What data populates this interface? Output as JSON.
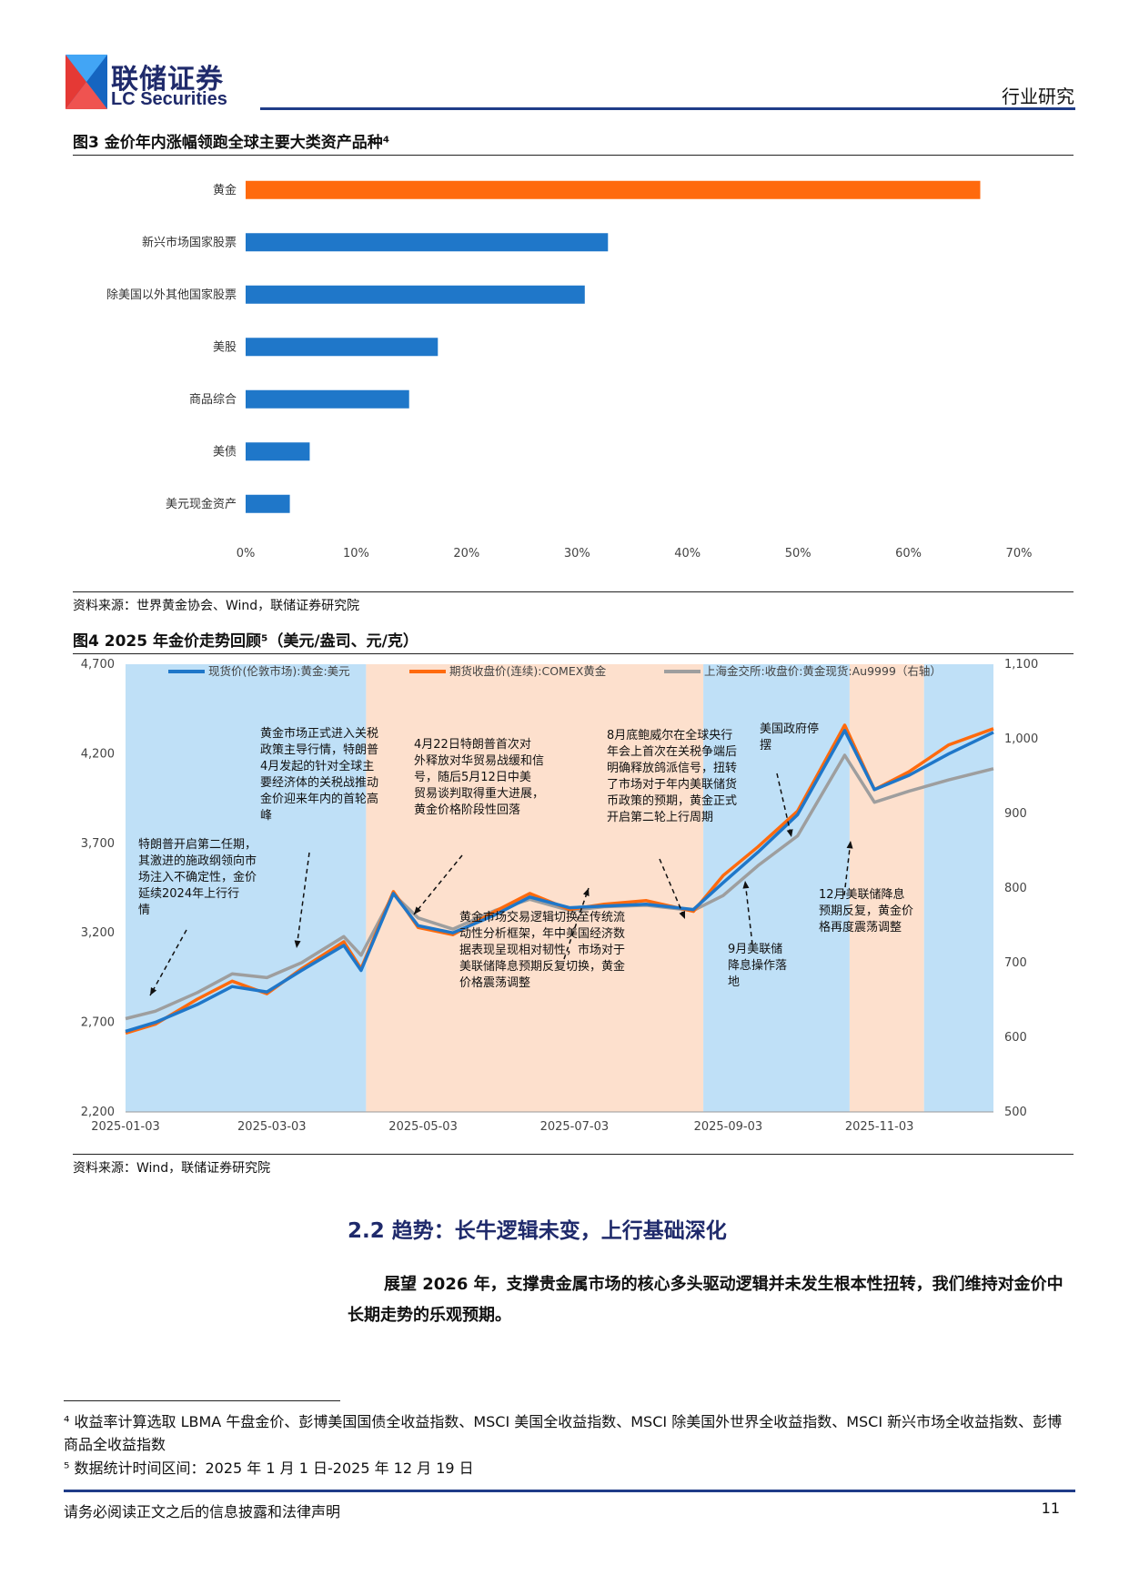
{
  "header": {
    "brand_cn": "联储证券",
    "brand_en": "LC Securities",
    "section": "行业研究"
  },
  "figure3": {
    "title": "图3 金价年内涨幅领跑全球主要大类资产品种⁴",
    "source": "资料来源：世界黄金协会、Wind，联储证券研究院"
  },
  "figure4": {
    "title": "图4 2025 年金价走势回顾⁵（美元/盎司、元/克）",
    "source": "资料来源：Wind，联储证券研究院",
    "annotations": [
      "特朗普开启第二任期，其激进的施政纲领向市场注入不确定性，金价延续2024年上行行情",
      "黄金市场正式进入关税政策主导行情，特朗普4月发起的针对全球主要经济体的关税战推动金价迎来年内的首轮高峰",
      "4月22日特朗普首次对外释放对华贸易战缓和信号，随后5月12日中美贸易谈判取得重大进展，黄金价格阶段性回落",
      "黄金市场交易逻辑切换至传统流动性分析框架，年中美国经济数据表现呈现相对韧性，市场对于美联储降息预期反复切换，黄金价格震荡调整",
      "8月底鲍威尔在全球央行年会上首次在关税争端后明确释放鸽派信号，扭转了市场对于年内美联储货币政策的预期，黄金正式开启第二轮上行周期",
      "美国政府停摆",
      "9月美联储降息操作落地",
      "12月美联储降息预期反复，黄金价格再度震荡调整"
    ]
  },
  "chart_data": [
    {
      "type": "bar",
      "orientation": "horizontal",
      "categories": [
        "黄金",
        "新兴市场国家股票",
        "除美国以外其他国家股票",
        "美股",
        "商品综合",
        "美债",
        "美元现金资产"
      ],
      "values": [
        66.5,
        32.8,
        30.7,
        17.4,
        14.8,
        5.8,
        4.0
      ],
      "colors": [
        "#ff6a0d",
        "#1f77c9",
        "#1f77c9",
        "#1f77c9",
        "#1f77c9",
        "#1f77c9",
        "#1f77c9"
      ],
      "xlim": [
        0,
        70
      ],
      "xticks": [
        "0%",
        "10%",
        "20%",
        "30%",
        "40%",
        "50%",
        "60%",
        "70%"
      ],
      "grid": false
    },
    {
      "type": "line",
      "x_ticks": [
        "2025-01-03",
        "2025-03-03",
        "2025-05-03",
        "2025-07-03",
        "2025-09-03",
        "2025-11-03"
      ],
      "ylim": [
        2200,
        4700
      ],
      "y_ticks": [
        "2,200",
        "2,700",
        "3,200",
        "3,700",
        "4,200",
        "4,700"
      ],
      "y2lim": [
        500,
        1100
      ],
      "y2_ticks": [
        "500",
        "600",
        "700",
        "800",
        "900",
        "1,000",
        "1,100"
      ],
      "legend_position": "top",
      "shaded_periods": [
        {
          "start": "2025-01-03",
          "end": "2025-04-10",
          "color": "#bfe0f7"
        },
        {
          "start": "2025-04-10",
          "end": "2025-08-24",
          "color": "#fde0cd"
        },
        {
          "start": "2025-08-24",
          "end": "2025-10-22",
          "color": "#bfe0f7"
        },
        {
          "start": "2025-10-22",
          "end": "2025-11-21",
          "color": "#fde0cd"
        },
        {
          "start": "2025-11-21",
          "end": "2025-12-19",
          "color": "#bfe0f7"
        }
      ],
      "series": [
        {
          "name": "现货价(伦敦市场):黄金:美元",
          "color": "#1f77c9",
          "axis": "left",
          "points": [
            [
              "2025-01-03",
              2650
            ],
            [
              "2025-01-15",
              2700
            ],
            [
              "2025-02-01",
              2800
            ],
            [
              "2025-02-15",
              2900
            ],
            [
              "2025-03-01",
              2870
            ],
            [
              "2025-03-15",
              2990
            ],
            [
              "2025-04-01",
              3130
            ],
            [
              "2025-04-08",
              2990
            ],
            [
              "2025-04-21",
              3420
            ],
            [
              "2025-05-01",
              3240
            ],
            [
              "2025-05-15",
              3200
            ],
            [
              "2025-06-01",
              3300
            ],
            [
              "2025-06-15",
              3400
            ],
            [
              "2025-07-01",
              3340
            ],
            [
              "2025-07-15",
              3350
            ],
            [
              "2025-08-01",
              3360
            ],
            [
              "2025-08-20",
              3330
            ],
            [
              "2025-09-01",
              3480
            ],
            [
              "2025-09-15",
              3650
            ],
            [
              "2025-10-01",
              3860
            ],
            [
              "2025-10-20",
              4330
            ],
            [
              "2025-11-01",
              4000
            ],
            [
              "2025-11-15",
              4080
            ],
            [
              "2025-12-01",
              4200
            ],
            [
              "2025-12-19",
              4320
            ]
          ]
        },
        {
          "name": "期货收盘价(连续):COMEX黄金",
          "color": "#ff6a0d",
          "axis": "left",
          "points": [
            [
              "2025-01-03",
              2640
            ],
            [
              "2025-01-15",
              2690
            ],
            [
              "2025-02-01",
              2830
            ],
            [
              "2025-02-15",
              2930
            ],
            [
              "2025-03-01",
              2860
            ],
            [
              "2025-03-15",
              3000
            ],
            [
              "2025-04-01",
              3150
            ],
            [
              "2025-04-08",
              3000
            ],
            [
              "2025-04-21",
              3430
            ],
            [
              "2025-05-01",
              3230
            ],
            [
              "2025-05-15",
              3190
            ],
            [
              "2025-06-01",
              3320
            ],
            [
              "2025-06-15",
              3420
            ],
            [
              "2025-07-01",
              3330
            ],
            [
              "2025-07-15",
              3360
            ],
            [
              "2025-08-01",
              3380
            ],
            [
              "2025-08-20",
              3320
            ],
            [
              "2025-09-01",
              3520
            ],
            [
              "2025-09-15",
              3680
            ],
            [
              "2025-10-01",
              3880
            ],
            [
              "2025-10-20",
              4360
            ],
            [
              "2025-11-01",
              4000
            ],
            [
              "2025-11-15",
              4100
            ],
            [
              "2025-12-01",
              4250
            ],
            [
              "2025-12-19",
              4340
            ]
          ]
        },
        {
          "name": "上海金交所:收盘价:黄金现货:Au9999（右轴）",
          "color": "#9e9e9e",
          "axis": "right",
          "points": [
            [
              "2025-01-03",
              625
            ],
            [
              "2025-01-15",
              635
            ],
            [
              "2025-02-01",
              660
            ],
            [
              "2025-02-15",
              685
            ],
            [
              "2025-03-01",
              680
            ],
            [
              "2025-03-15",
              700
            ],
            [
              "2025-04-01",
              735
            ],
            [
              "2025-04-08",
              710
            ],
            [
              "2025-04-21",
              792
            ],
            [
              "2025-05-01",
              760
            ],
            [
              "2025-05-15",
              745
            ],
            [
              "2025-06-01",
              770
            ],
            [
              "2025-06-15",
              785
            ],
            [
              "2025-07-01",
              770
            ],
            [
              "2025-07-15",
              775
            ],
            [
              "2025-08-01",
              777
            ],
            [
              "2025-08-20",
              770
            ],
            [
              "2025-09-01",
              790
            ],
            [
              "2025-09-15",
              830
            ],
            [
              "2025-10-01",
              870
            ],
            [
              "2025-10-20",
              978
            ],
            [
              "2025-11-01",
              915
            ],
            [
              "2025-11-15",
              930
            ],
            [
              "2025-12-01",
              945
            ],
            [
              "2025-12-19",
              960
            ]
          ]
        }
      ]
    }
  ],
  "section": {
    "title": "2.2 趋势：长牛逻辑未变，上行基础深化",
    "paragraph": "展望 2026 年，支撑贵金属市场的核心多头驱动逻辑并未发生根本性扭转，我们维持对金价中长期走势的乐观预期。"
  },
  "footnotes": [
    "⁴ 收益率计算选取 LBMA 午盘金价、彭博美国国债全收益指数、MSCI 美国全收益指数、MSCI 除美国外世界全收益指数、MSCI 新兴市场全收益指数、彭博商品全收益指数",
    "⁵ 数据统计时间区间：2025 年 1 月 1 日-2025 年 12 月 19 日"
  ],
  "footer": {
    "disclaimer": "请务必阅读正文之后的信息披露和法律声明",
    "page": "11"
  }
}
